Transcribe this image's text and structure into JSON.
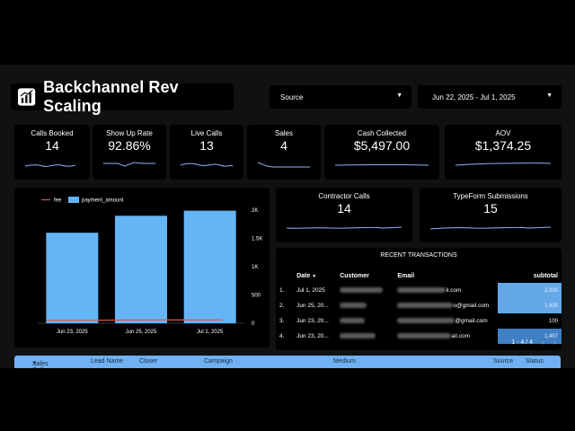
{
  "header": {
    "title": "Backchannel Rev Scaling",
    "source_label": "Source",
    "date_range": "Jun 22, 2025 - Jul 1, 2025"
  },
  "kpis": [
    {
      "label": "Calls Booked",
      "value": "14"
    },
    {
      "label": "Show Up Rate",
      "value": "92.86%"
    },
    {
      "label": "Live Calls",
      "value": "13"
    },
    {
      "label": "Sales",
      "value": "4"
    },
    {
      "label": "Cash Collected",
      "value": "$5,497.00"
    },
    {
      "label": "AOV",
      "value": "$1,374.25"
    },
    {
      "label": "Contractor Calls",
      "value": "14"
    },
    {
      "label": "TypeForm Submissions",
      "value": "15"
    }
  ],
  "chart_data": {
    "type": "bar",
    "categories": [
      "Jun 23, 2025",
      "Jun 25, 2025",
      "Jul 1, 2025"
    ],
    "series": [
      {
        "name": "payment_amount",
        "type": "bar",
        "values": [
          1600,
          1900,
          1990
        ]
      },
      {
        "name": "fee",
        "type": "line",
        "values": [
          50,
          60,
          60
        ]
      }
    ],
    "ylim": [
      0,
      2000
    ],
    "yticks": [
      {
        "value": 2000,
        "label": "2K"
      },
      {
        "value": 1500,
        "label": "1.5K"
      },
      {
        "value": 1000,
        "label": "1K"
      },
      {
        "value": 500,
        "label": "500"
      },
      {
        "value": 0,
        "label": "0"
      }
    ],
    "legend": "top-left",
    "colors": {
      "bar": "#64b5f6",
      "line": "#e05353"
    }
  },
  "transactions": {
    "title": "RECENT TRANSACTIONS",
    "columns": [
      "Date",
      "Customer",
      "Email",
      "subtotal"
    ],
    "sort_indicator": "▼",
    "rows": [
      {
        "index": "1.",
        "date": "Jul 1, 2025",
        "email_suffix": "il.com",
        "subtotal": "2,000",
        "fill": 1.0
      },
      {
        "index": "2.",
        "date": "Jun 25, 20...",
        "email_suffix": "o@gmail.com",
        "subtotal": "1,900",
        "fill": 0.95
      },
      {
        "index": "3.",
        "date": "Jun 23, 20...",
        "email_suffix": "@gmail.com",
        "subtotal": "100",
        "fill": 0.05
      },
      {
        "index": "4.",
        "date": "Jun 23, 20...",
        "email_suffix": "ail.com",
        "subtotal": "1,497",
        "fill": 0.75
      }
    ],
    "pagination": "1 - 4 / 4"
  },
  "bottom_table": {
    "columns": [
      "Sales Call D...",
      "Lead Name",
      "Closer",
      "Campaign",
      "Medium",
      "Source",
      "Status"
    ]
  }
}
